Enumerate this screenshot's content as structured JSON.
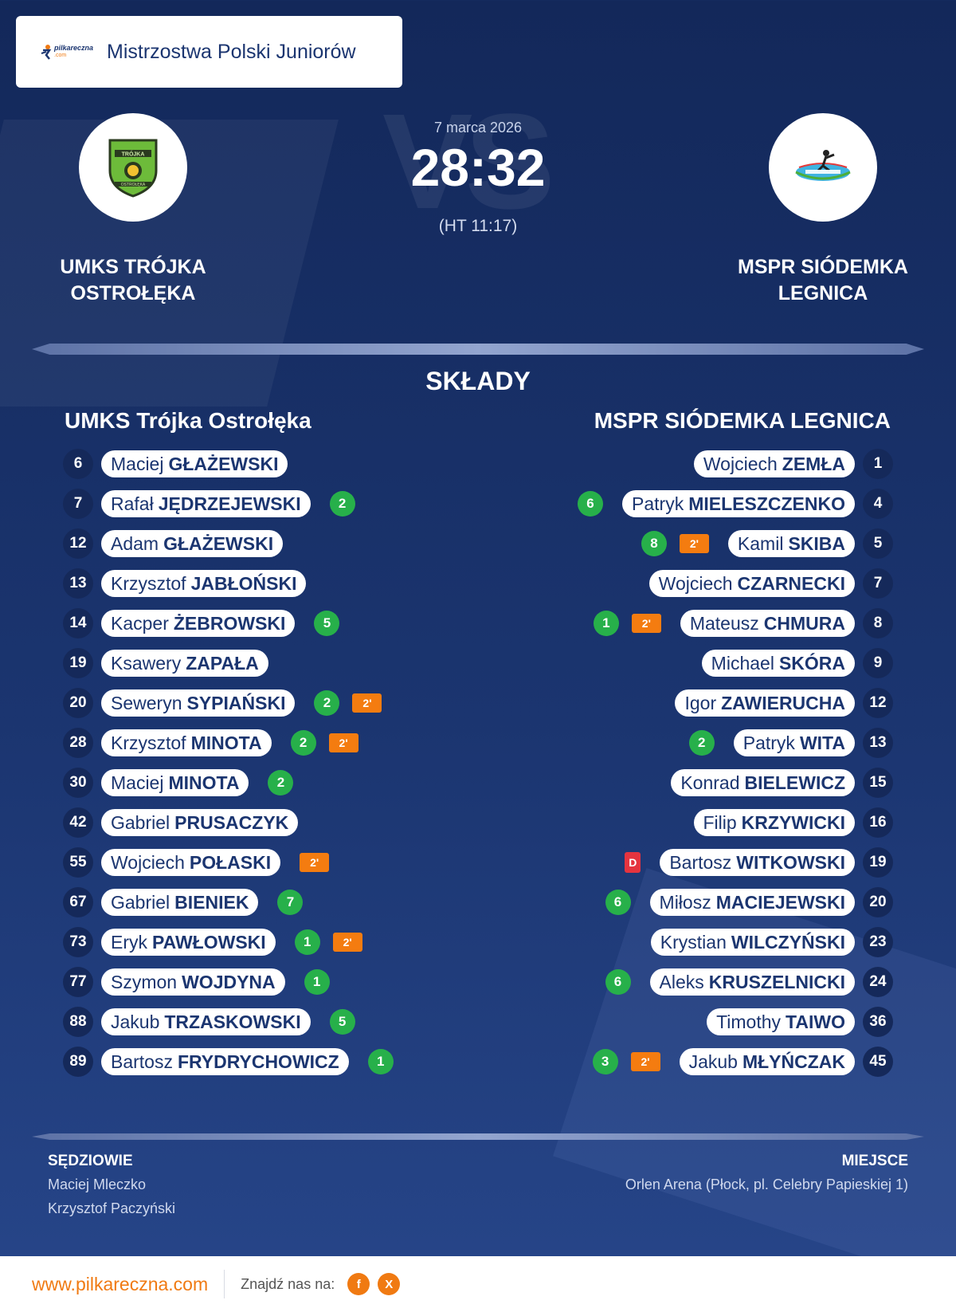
{
  "header": {
    "brand_main": "pilkareczna",
    "brand_sub": ".com",
    "competition": "Mistrzostwa Polski Juniorów"
  },
  "match": {
    "date": "7 marca 2026",
    "score": "28:32",
    "halftime": "(HT 11:17)",
    "vs_watermark": "VS"
  },
  "home": {
    "name_line1": "UMKS TRÓJKA",
    "name_line2": "OSTROŁĘKA",
    "roster_title": "UMKS Trójka Ostrołęka",
    "logo_text_top": "TRÓJKA",
    "logo_text_bottom": "OSTROŁĘKA",
    "players": [
      {
        "number": "6",
        "first": "Maciej",
        "last": "GŁAŻEWSKI",
        "goals": "",
        "suspension": "",
        "disqualified": ""
      },
      {
        "number": "7",
        "first": "Rafał",
        "last": "JĘDRZEJEWSKI",
        "goals": "2",
        "suspension": "",
        "disqualified": ""
      },
      {
        "number": "12",
        "first": "Adam",
        "last": "GŁAŻEWSKI",
        "goals": "",
        "suspension": "",
        "disqualified": ""
      },
      {
        "number": "13",
        "first": "Krzysztof",
        "last": "JABŁOŃSKI",
        "goals": "",
        "suspension": "",
        "disqualified": ""
      },
      {
        "number": "14",
        "first": "Kacper",
        "last": "ŻEBROWSKI",
        "goals": "5",
        "suspension": "",
        "disqualified": ""
      },
      {
        "number": "19",
        "first": "Ksawery",
        "last": "ZAPAŁA",
        "goals": "",
        "suspension": "",
        "disqualified": ""
      },
      {
        "number": "20",
        "first": "Seweryn",
        "last": "SYPIAŃSKI",
        "goals": "2",
        "suspension": "2'",
        "disqualified": ""
      },
      {
        "number": "28",
        "first": "Krzysztof",
        "last": "MINOTA",
        "goals": "2",
        "suspension": "2'",
        "disqualified": ""
      },
      {
        "number": "30",
        "first": "Maciej",
        "last": "MINOTA",
        "goals": "2",
        "suspension": "",
        "disqualified": ""
      },
      {
        "number": "42",
        "first": "Gabriel",
        "last": "PRUSACZYK",
        "goals": "",
        "suspension": "",
        "disqualified": ""
      },
      {
        "number": "55",
        "first": "Wojciech",
        "last": "POŁASKI",
        "goals": "",
        "suspension": "2'",
        "disqualified": ""
      },
      {
        "number": "67",
        "first": "Gabriel",
        "last": "BIENIEK",
        "goals": "7",
        "suspension": "",
        "disqualified": ""
      },
      {
        "number": "73",
        "first": "Eryk",
        "last": "PAWŁOWSKI",
        "goals": "1",
        "suspension": "2'",
        "disqualified": ""
      },
      {
        "number": "77",
        "first": "Szymon",
        "last": "WOJDYNA",
        "goals": "1",
        "suspension": "",
        "disqualified": ""
      },
      {
        "number": "88",
        "first": "Jakub",
        "last": "TRZASKOWSKI",
        "goals": "5",
        "suspension": "",
        "disqualified": ""
      },
      {
        "number": "89",
        "first": "Bartosz",
        "last": "FRYDRYCHOWICZ",
        "goals": "1",
        "suspension": "",
        "disqualified": ""
      }
    ]
  },
  "away": {
    "name_line1": "MSPR SIÓDEMKA",
    "name_line2": "LEGNICA",
    "roster_title": "MSPR SIÓDEMKA LEGNICA",
    "players": [
      {
        "number": "1",
        "first": "Wojciech",
        "last": "ZEMŁA",
        "goals": "",
        "suspension": "",
        "disqualified": ""
      },
      {
        "number": "4",
        "first": "Patryk",
        "last": "MIELESZCZENKO",
        "goals": "6",
        "suspension": "",
        "disqualified": ""
      },
      {
        "number": "5",
        "first": "Kamil",
        "last": "SKIBA",
        "goals": "8",
        "suspension": "2'",
        "disqualified": ""
      },
      {
        "number": "7",
        "first": "Wojciech",
        "last": "CZARNECKI",
        "goals": "",
        "suspension": "",
        "disqualified": ""
      },
      {
        "number": "8",
        "first": "Mateusz",
        "last": "CHMURA",
        "goals": "1",
        "suspension": "2'",
        "disqualified": ""
      },
      {
        "number": "9",
        "first": "Michael",
        "last": "SKÓRA",
        "goals": "",
        "suspension": "",
        "disqualified": ""
      },
      {
        "number": "12",
        "first": "Igor",
        "last": "ZAWIERUCHA",
        "goals": "",
        "suspension": "",
        "disqualified": ""
      },
      {
        "number": "13",
        "first": "Patryk",
        "last": "WITA",
        "goals": "2",
        "suspension": "",
        "disqualified": ""
      },
      {
        "number": "15",
        "first": "Konrad",
        "last": "BIELEWICZ",
        "goals": "",
        "suspension": "",
        "disqualified": ""
      },
      {
        "number": "16",
        "first": "Filip",
        "last": "KRZYWICKI",
        "goals": "",
        "suspension": "",
        "disqualified": ""
      },
      {
        "number": "19",
        "first": "Bartosz",
        "last": "WITKOWSKI",
        "goals": "",
        "suspension": "",
        "disqualified": "D"
      },
      {
        "number": "20",
        "first": "Miłosz",
        "last": "MACIEJEWSKI",
        "goals": "6",
        "suspension": "",
        "disqualified": ""
      },
      {
        "number": "23",
        "first": "Krystian",
        "last": "WILCZYŃSKI",
        "goals": "",
        "suspension": "",
        "disqualified": ""
      },
      {
        "number": "24",
        "first": "Aleks",
        "last": "KRUSZELNICKI",
        "goals": "6",
        "suspension": "",
        "disqualified": ""
      },
      {
        "number": "36",
        "first": "Timothy",
        "last": "TAIWO",
        "goals": "",
        "suspension": "",
        "disqualified": ""
      },
      {
        "number": "45",
        "first": "Jakub",
        "last": "MŁYŃCZAK",
        "goals": "3",
        "suspension": "2'",
        "disqualified": ""
      }
    ]
  },
  "lineups_title": "SKŁADY",
  "referees": {
    "title": "SĘDZIOWIE",
    "names": [
      "Maciej Mleczko",
      "Krzysztof Paczyński"
    ]
  },
  "venue": {
    "title": "MIEJSCE",
    "text": "Orlen Arena (Płock, pl. Celebry Papieskiej 1)"
  },
  "footer": {
    "site": "www.pilkareczna.com",
    "find_us": "Znajdź nas na:",
    "social": [
      {
        "icon": "facebook-icon",
        "glyph": "f"
      },
      {
        "icon": "x-icon",
        "glyph": "X"
      }
    ]
  },
  "colors": {
    "background": "#1b3570",
    "accent": "#f07a12",
    "goal": "#27b04a",
    "suspension": "#f47c10",
    "disqualification": "#e5343f"
  }
}
